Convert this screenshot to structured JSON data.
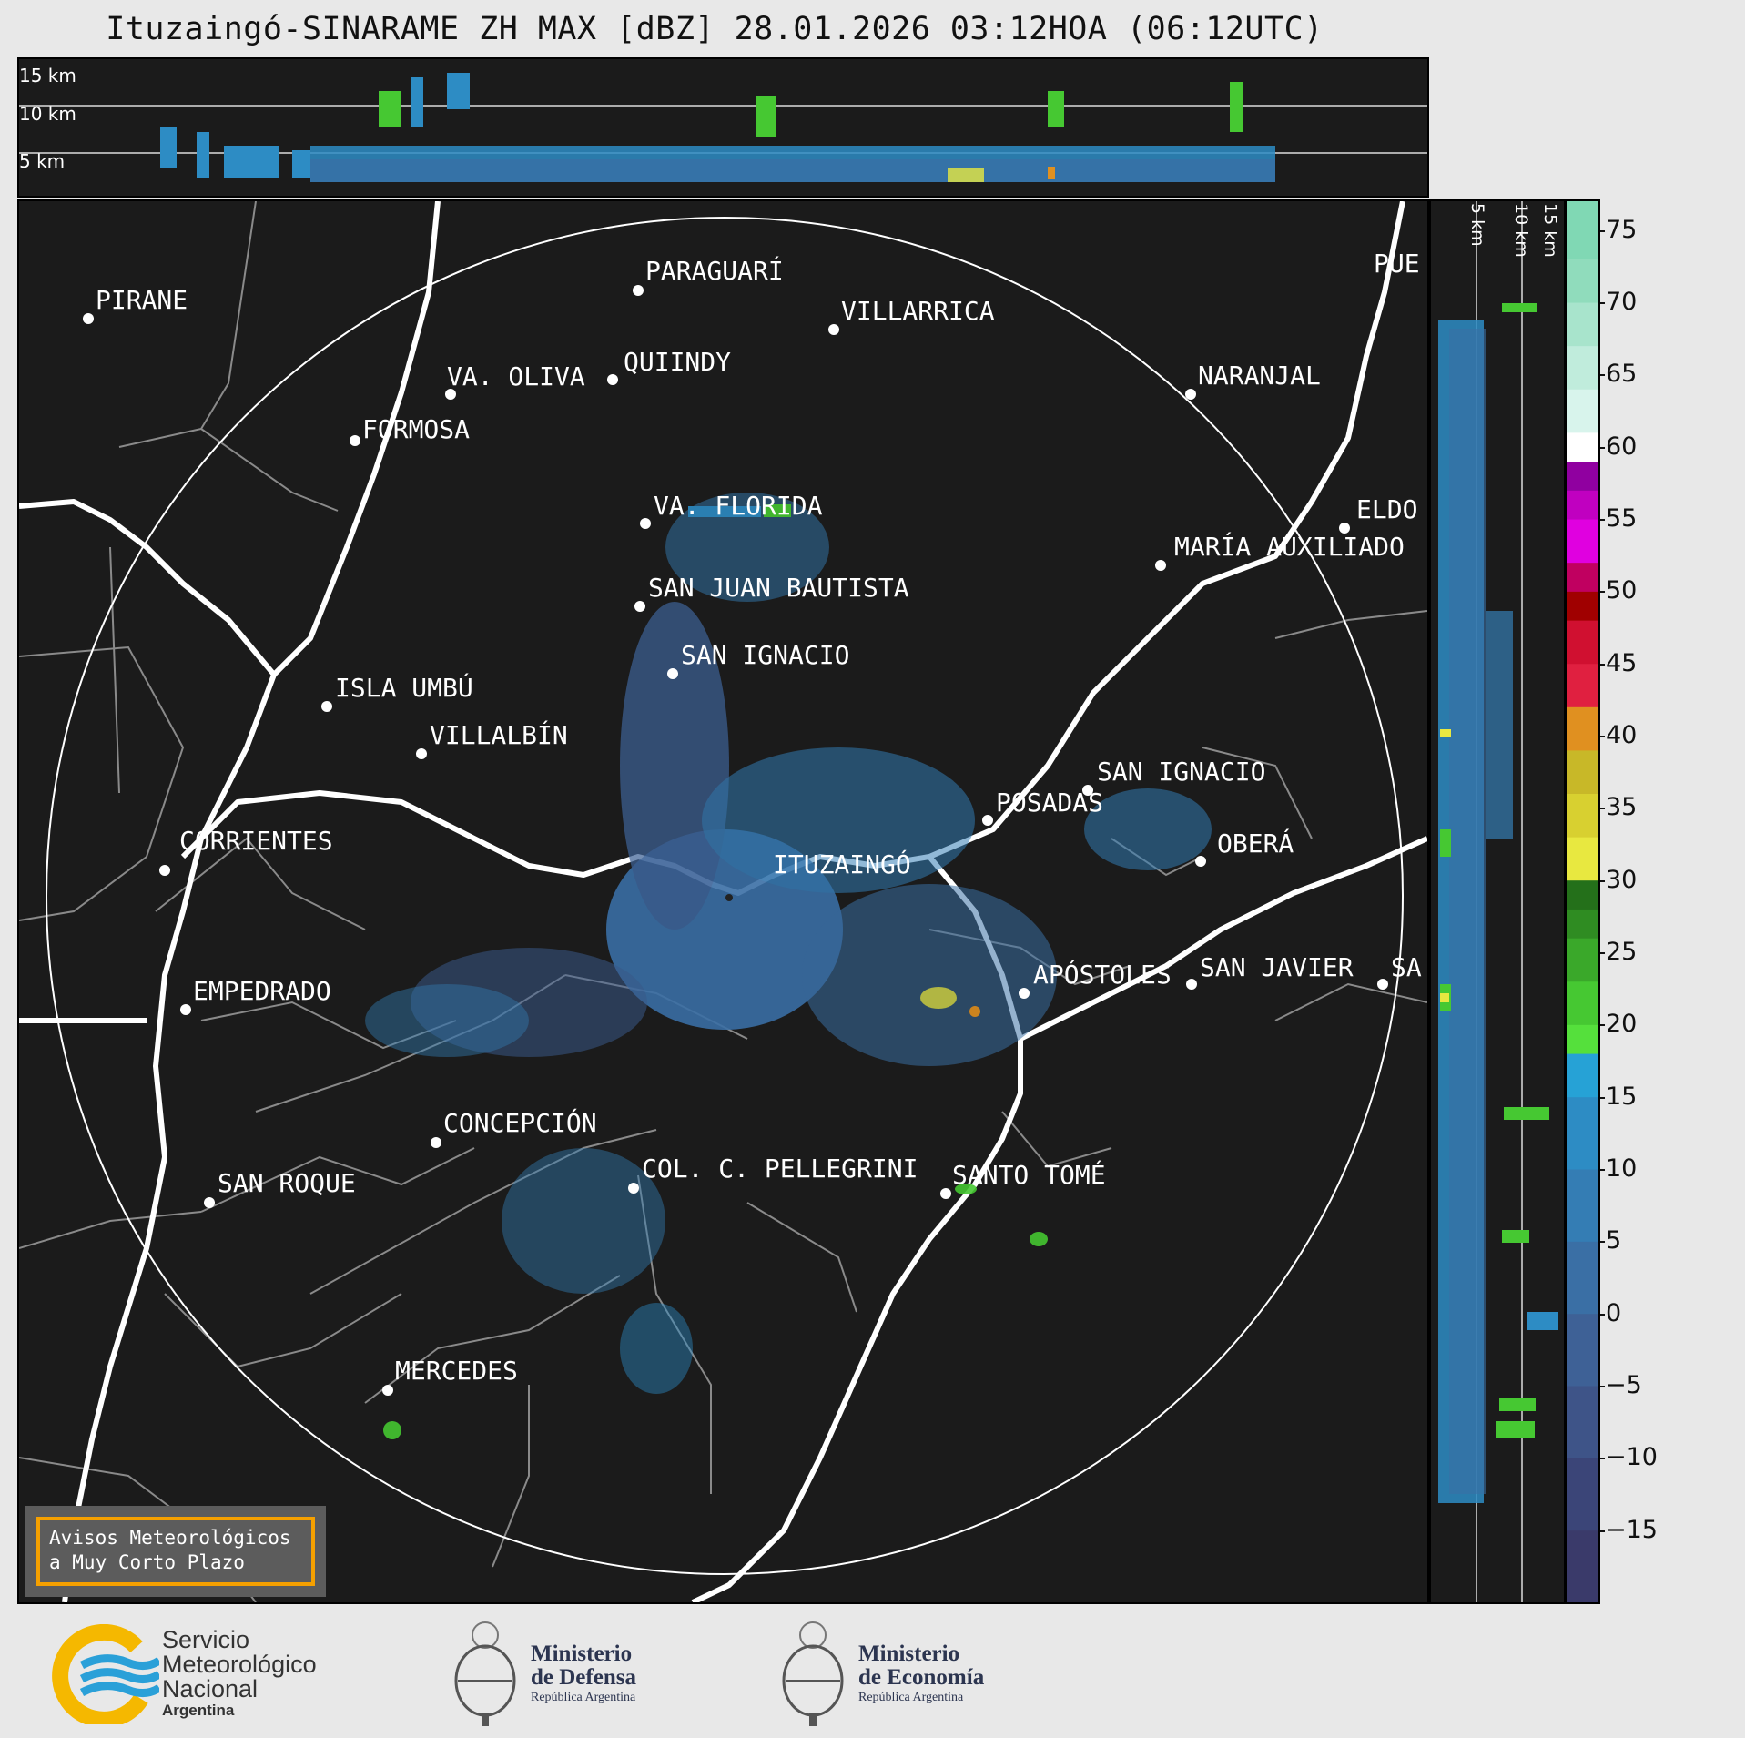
{
  "title": "Ituzaingó-SINARAME ZH MAX [dBZ] 28.01.2026 03:12HOA (06:12UTC)",
  "top_strip": {
    "height_labels": [
      "15 km",
      "10 km",
      "5 km"
    ]
  },
  "side_strip": {
    "height_labels": [
      "5 km",
      "10 km",
      "15 km"
    ]
  },
  "colorbar": {
    "ticks": [
      "75",
      "70",
      "65",
      "60",
      "55",
      "50",
      "45",
      "40",
      "35",
      "30",
      "25",
      "20",
      "15",
      "10",
      "5",
      "0",
      "−5",
      "−10",
      "−15"
    ],
    "range": [
      -20,
      77
    ],
    "colors": [
      {
        "from": -20,
        "color": "#3a3a6a"
      },
      {
        "from": -15,
        "color": "#3b4578"
      },
      {
        "from": -10,
        "color": "#3e5488"
      },
      {
        "from": -5,
        "color": "#3e6196"
      },
      {
        "from": 0,
        "color": "#3a6fa5"
      },
      {
        "from": 5,
        "color": "#347db4"
      },
      {
        "from": 10,
        "color": "#2d8cc4"
      },
      {
        "from": 15,
        "color": "#26a2d6"
      },
      {
        "from": 18,
        "color": "#55e03c"
      },
      {
        "from": 20,
        "color": "#46c832"
      },
      {
        "from": 23,
        "color": "#3aa82a"
      },
      {
        "from": 26,
        "color": "#2f8c22"
      },
      {
        "from": 28,
        "color": "#24701a"
      },
      {
        "from": 30,
        "color": "#e8e840"
      },
      {
        "from": 33,
        "color": "#d8d030"
      },
      {
        "from": 36,
        "color": "#c8b828"
      },
      {
        "from": 39,
        "color": "#e09020"
      },
      {
        "from": 42,
        "color": "#e02040"
      },
      {
        "from": 45,
        "color": "#d01030"
      },
      {
        "from": 48,
        "color": "#a00000"
      },
      {
        "from": 50,
        "color": "#c00060"
      },
      {
        "from": 52,
        "color": "#e000e0"
      },
      {
        "from": 55,
        "color": "#c000c0"
      },
      {
        "from": 57,
        "color": "#9000a0"
      },
      {
        "from": 59,
        "color": "#ffffff"
      },
      {
        "from": 61,
        "color": "#d8f4ec"
      },
      {
        "from": 64,
        "color": "#c0ecdc"
      },
      {
        "from": 67,
        "color": "#a8e4cc"
      },
      {
        "from": 70,
        "color": "#90dcbc"
      },
      {
        "from": 73,
        "color": "#80d8b4"
      }
    ]
  },
  "map": {
    "radar_site": "ITUZAINGÓ",
    "cities": [
      {
        "name": "PIRANE"
      },
      {
        "name": "PARAGUARÍ"
      },
      {
        "name": "VILLARRICA"
      },
      {
        "name": "QUIINDY"
      },
      {
        "name": "VA. OLIVA"
      },
      {
        "name": "NARANJAL"
      },
      {
        "name": "FORMOSA"
      },
      {
        "name": "PUE"
      },
      {
        "name": "VA. FLORIDA"
      },
      {
        "name": "ELDO"
      },
      {
        "name": "MARÍA AUXILIADO"
      },
      {
        "name": "SAN JUAN BAUTISTA"
      },
      {
        "name": "SAN IGNACIO"
      },
      {
        "name": "ISLA UMBÚ"
      },
      {
        "name": "VILLALBÍN"
      },
      {
        "name": "SAN IGNACIO"
      },
      {
        "name": "POSADAS"
      },
      {
        "name": "CORRIENTES"
      },
      {
        "name": "OBERÁ"
      },
      {
        "name": "ITUZAINGÓ"
      },
      {
        "name": "APÓSTOLES"
      },
      {
        "name": "SAN JAVIER"
      },
      {
        "name": "SA"
      },
      {
        "name": "EMPEDRADO"
      },
      {
        "name": "CONCEPCIÓN"
      },
      {
        "name": "COL. C. PELLEGRINI"
      },
      {
        "name": "SANTO TOMÉ"
      },
      {
        "name": "SAN ROQUE"
      },
      {
        "name": "MERCEDES"
      }
    ]
  },
  "alert_box": {
    "line1": "Avisos Meteorológicos",
    "line2": "a Muy Corto Plazo"
  },
  "footer": {
    "smn": {
      "line1": "Servicio",
      "line2": "Meteorológico",
      "line3": "Nacional",
      "line4": "Argentina",
      "colors": {
        "ring": "#f5b800",
        "waves": "#2aa0d8"
      }
    },
    "defensa": {
      "line1": "Ministerio",
      "line2": "de Defensa",
      "line3": "República Argentina"
    },
    "economia": {
      "line1": "Ministerio",
      "line2": "de Economía",
      "line3": "República Argentina"
    }
  }
}
